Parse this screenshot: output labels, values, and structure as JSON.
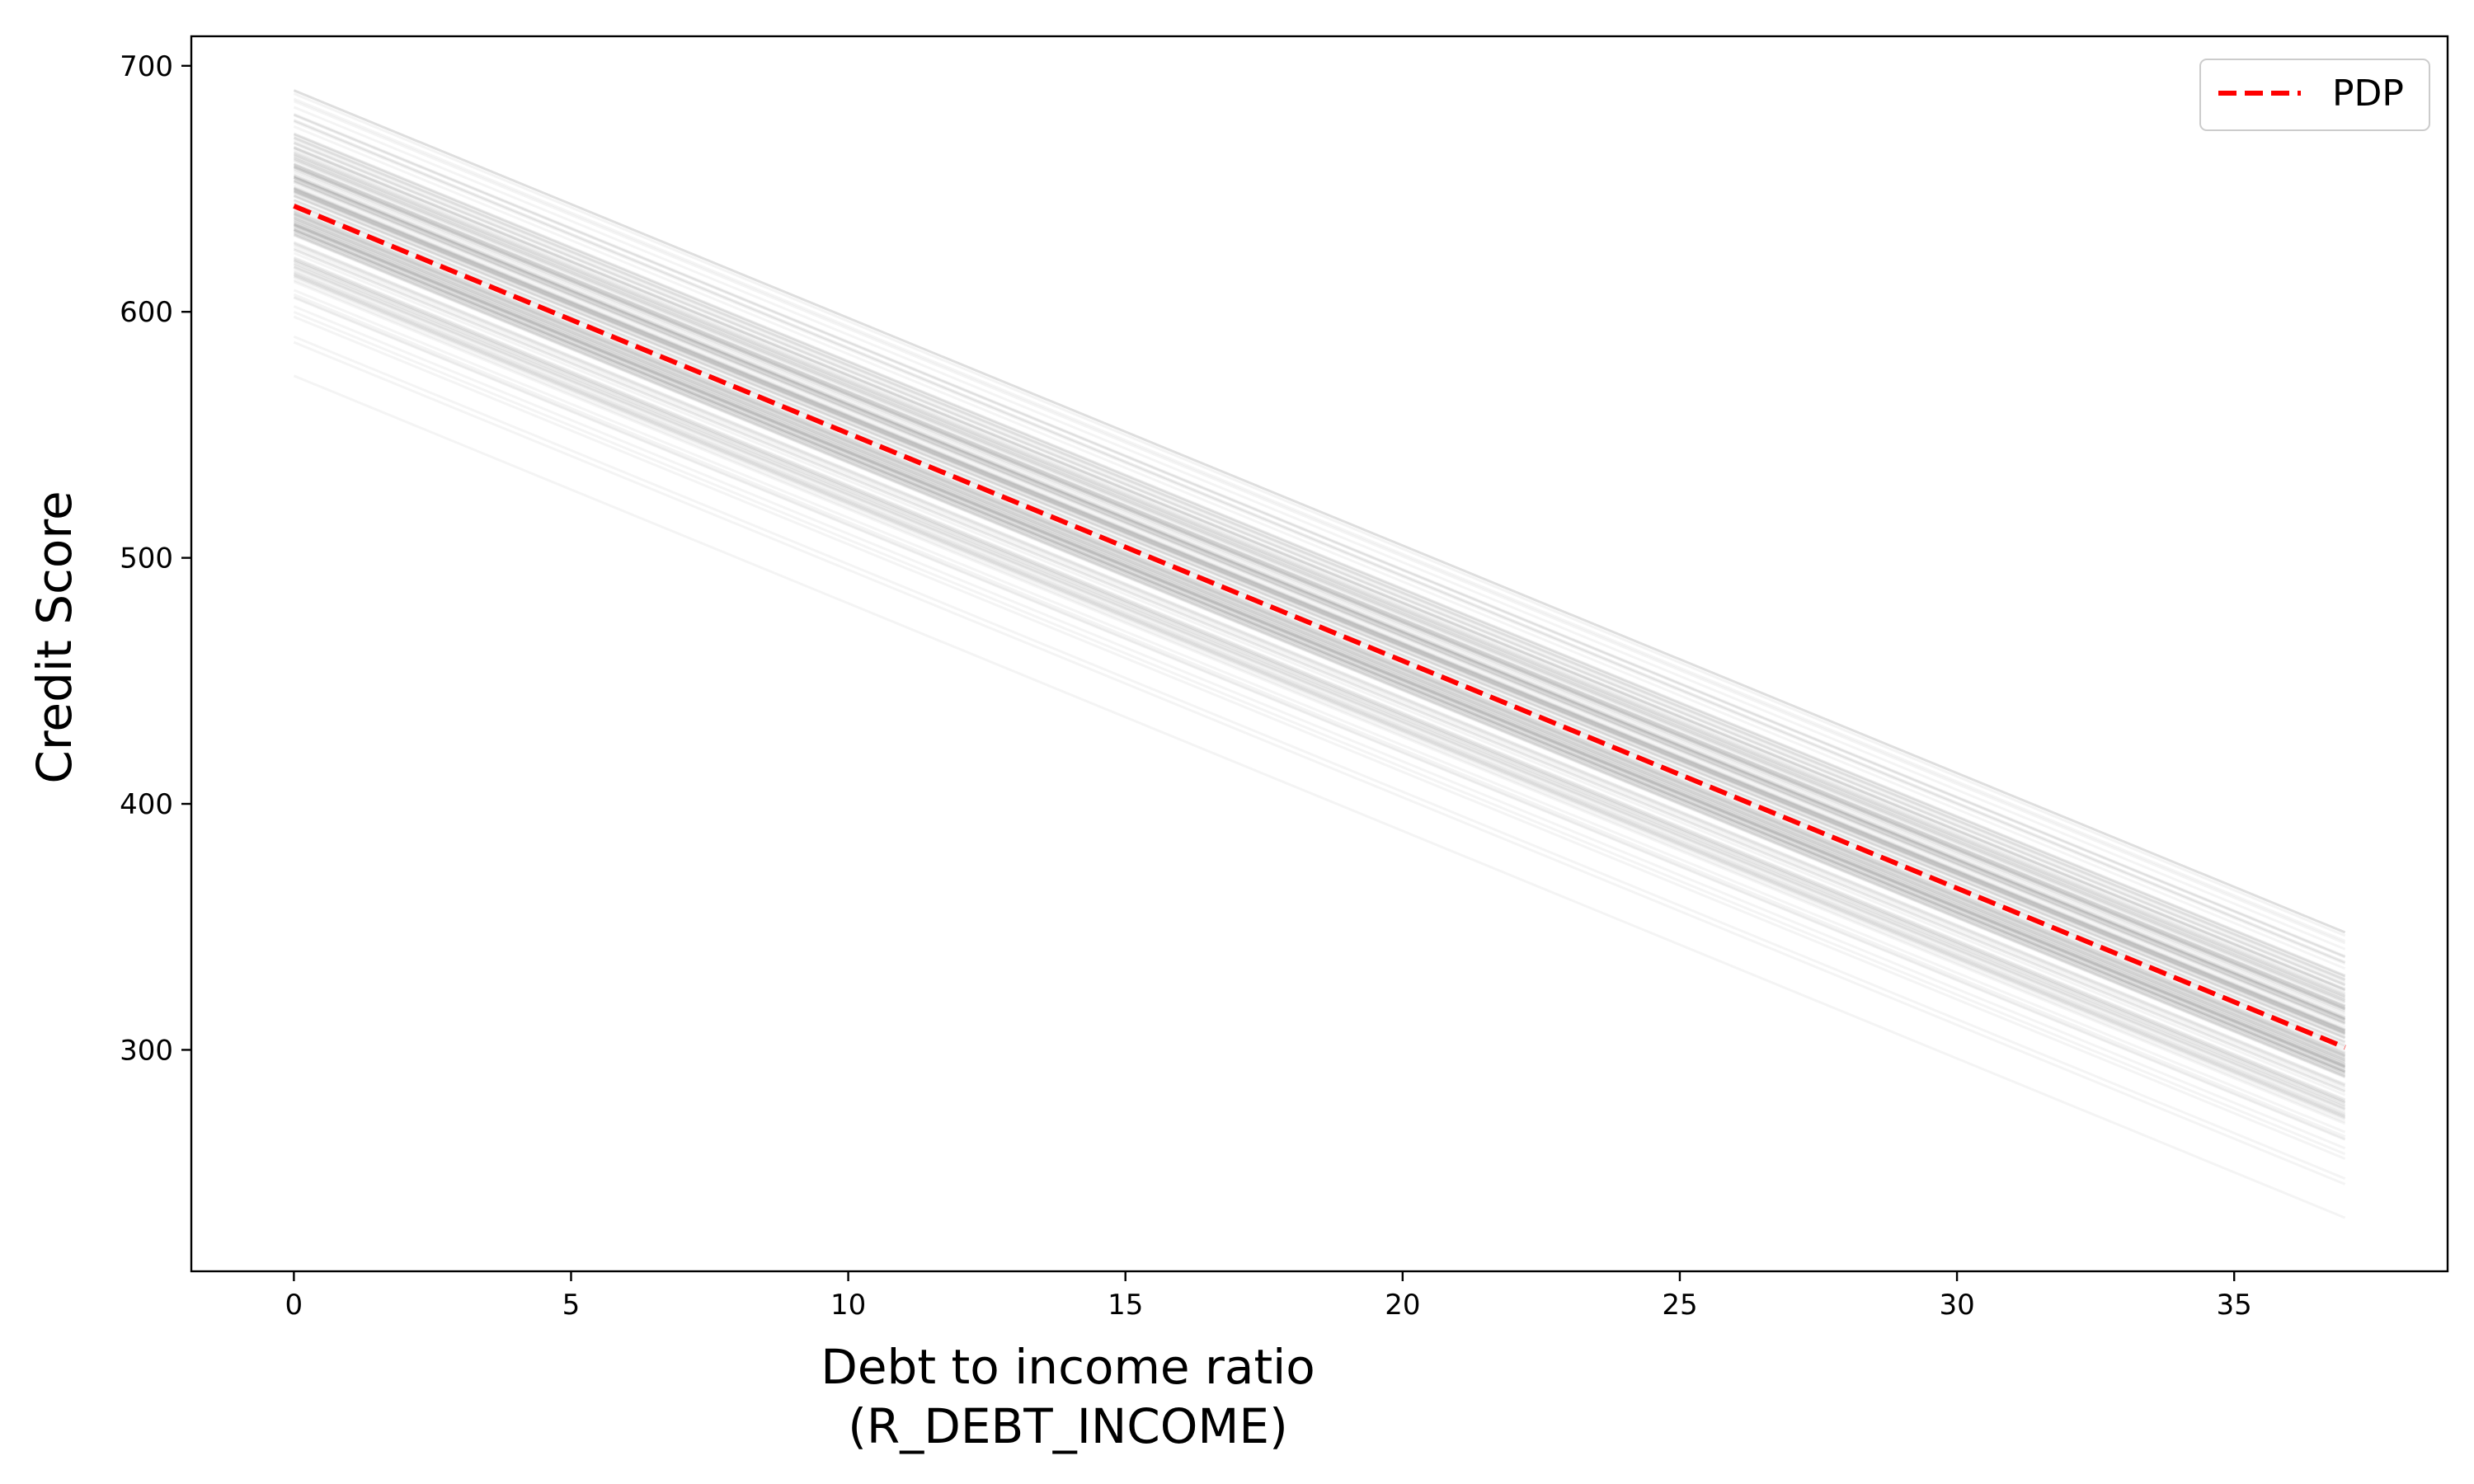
{
  "chart_data": {
    "type": "line",
    "title": "",
    "xlabel": "Debt to income ratio",
    "xlabel_line2": "(R_DEBT_INCOME)",
    "ylabel": "Credit Score",
    "xlim": [
      -1.85,
      38.85
    ],
    "ylim": [
      210,
      712
    ],
    "x_ticks": [
      0,
      5,
      10,
      15,
      20,
      25,
      30,
      35
    ],
    "y_ticks": [
      300,
      400,
      500,
      600,
      700
    ],
    "grid": false,
    "legend": {
      "position": "top-right",
      "entries": [
        "PDP"
      ]
    },
    "colors": {
      "pdp": "#ff0000",
      "ice": "#000000"
    },
    "ice_lines": {
      "x_range": [
        0,
        37
      ],
      "slope": -9.25,
      "count": 180,
      "intercept_min": 574,
      "intercept_max": 690,
      "intercept_center": 643
    },
    "series": [
      {
        "name": "PDP",
        "style": "dashed",
        "x": [
          0,
          37
        ],
        "y": [
          643,
          301
        ]
      }
    ]
  }
}
